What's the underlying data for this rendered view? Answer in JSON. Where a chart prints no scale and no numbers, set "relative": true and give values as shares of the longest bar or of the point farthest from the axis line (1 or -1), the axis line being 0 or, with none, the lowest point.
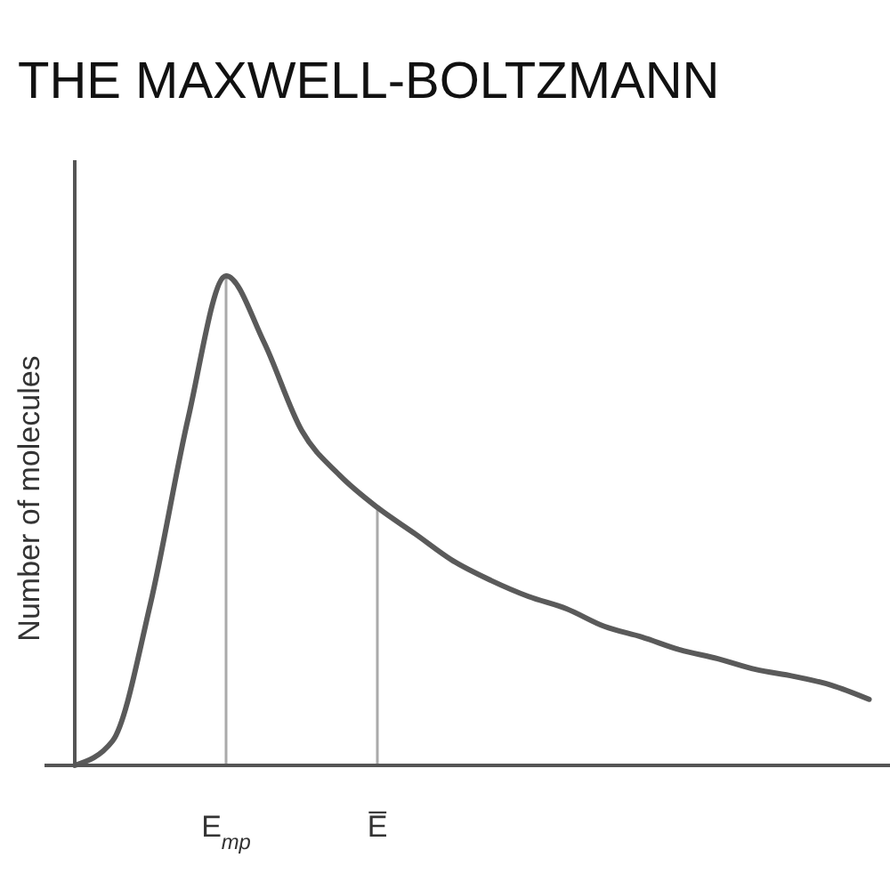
{
  "chart_data": {
    "type": "line",
    "title": "THE MAXWELL-BOLTZMANN",
    "ylabel": "Number of molecules",
    "relative": true,
    "categories": [
      null,
      null,
      null,
      null,
      "E$_{mp}$",
      null,
      null,
      null,
      "E̅",
      null,
      null,
      null,
      null,
      null,
      null,
      null,
      null,
      null,
      null,
      null,
      null,
      null
    ],
    "series": [
      {
        "color": "#5a5a5a",
        "values": [
          0,
          0.05,
          0.33,
          0.71,
          1,
          0.865,
          0.684,
          0.593,
          0.527,
          0.473,
          0.418,
          0.378,
          0.345,
          0.32,
          0.284,
          0.262,
          0.236,
          0.218,
          0.196,
          0.182,
          0.164,
          0.135
        ]
      }
    ],
    "ref_lines": [
      {
        "axis": "x",
        "value": "E$_{mp}$",
        "color": "#aaaaaa"
      },
      {
        "axis": "x",
        "value": "E̅",
        "color": "#aaaaaa"
      }
    ]
  }
}
